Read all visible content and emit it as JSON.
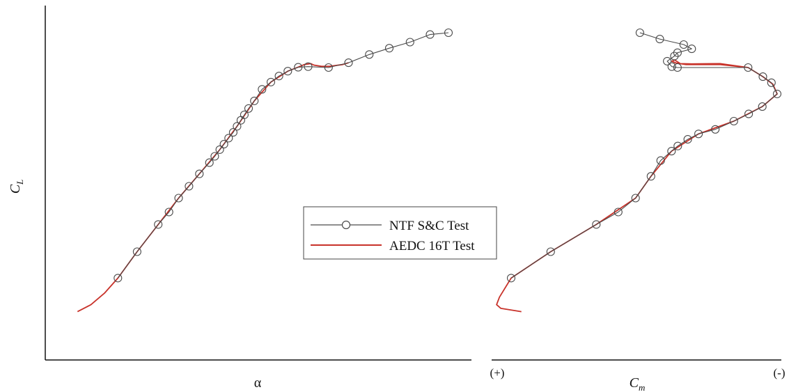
{
  "chart_data": [
    {
      "type": "line",
      "xlabel": "α",
      "ylabel": "C",
      "ylabel_sub": "L",
      "xlim": [
        0,
        100
      ],
      "ylim": [
        0,
        100
      ],
      "grid": false,
      "series": [
        {
          "name": "NTF S&C Test",
          "color": "#4a4a4a",
          "marker": "open-circle",
          "points": [
            [
              14.0,
              19.0
            ],
            [
              19.0,
              27.7
            ],
            [
              24.5,
              36.7
            ],
            [
              27.3,
              40.8
            ],
            [
              29.8,
              45.4
            ],
            [
              32.5,
              49.3
            ],
            [
              35.2,
              53.4
            ],
            [
              37.8,
              57.1
            ],
            [
              39.2,
              59.2
            ],
            [
              40.5,
              61.4
            ],
            [
              41.6,
              63.2
            ],
            [
              42.8,
              65.2
            ],
            [
              44.0,
              67.1
            ],
            [
              45.0,
              69.1
            ],
            [
              46.0,
              71.1
            ],
            [
              46.9,
              72.9
            ],
            [
              48.0,
              75.0
            ],
            [
              49.5,
              77.5
            ],
            [
              51.5,
              81.3
            ],
            [
              53.8,
              83.7
            ],
            [
              55.9,
              85.7
            ],
            [
              58.2,
              87.3
            ],
            [
              60.9,
              88.6
            ],
            [
              63.5,
              88.8
            ],
            [
              68.8,
              88.5
            ],
            [
              74.0,
              90.1
            ],
            [
              79.4,
              92.8
            ],
            [
              84.6,
              94.9
            ],
            [
              90.0,
              96.9
            ],
            [
              95.2,
              99.4
            ],
            [
              100.0,
              100.0
            ]
          ]
        },
        {
          "name": "AEDC 16T Test",
          "color": "#c8322a",
          "marker": "none",
          "points": [
            [
              3.5,
              7.9
            ],
            [
              7.0,
              10.2
            ],
            [
              10.5,
              14.0
            ],
            [
              14.0,
              19.0
            ],
            [
              19.0,
              27.7
            ],
            [
              24.5,
              36.7
            ],
            [
              29.8,
              45.4
            ],
            [
              35.2,
              53.4
            ],
            [
              40.5,
              61.4
            ],
            [
              45.0,
              69.1
            ],
            [
              49.5,
              77.5
            ],
            [
              53.8,
              83.7
            ],
            [
              58.2,
              87.3
            ],
            [
              61.0,
              88.7
            ],
            [
              62.5,
              89.5
            ],
            [
              64.2,
              89.8
            ],
            [
              65.0,
              89.3
            ],
            [
              67.0,
              88.9
            ],
            [
              69.0,
              88.9
            ],
            [
              70.2,
              89.1
            ],
            [
              72.5,
              89.5
            ],
            [
              74.0,
              90.1
            ]
          ]
        }
      ]
    },
    {
      "type": "line",
      "xlabel": "C",
      "xlabel_sub": "m",
      "x_left_label": "(+)",
      "x_right_label": "(-)",
      "xlim": [
        0,
        100
      ],
      "ylim": [
        0,
        100
      ],
      "grid": false,
      "series": [
        {
          "name": "NTF S&C Test",
          "color": "#4a4a4a",
          "marker": "open-circle",
          "points": [
            [
              6.6,
              19.0
            ],
            [
              20.5,
              27.7
            ],
            [
              36.5,
              36.7
            ],
            [
              44.2,
              40.8
            ],
            [
              50.3,
              45.4
            ],
            [
              55.7,
              52.6
            ],
            [
              59.1,
              57.8
            ],
            [
              62.9,
              60.9
            ],
            [
              65.1,
              62.6
            ],
            [
              68.6,
              64.8
            ],
            [
              72.4,
              66.6
            ],
            [
              78.3,
              68.1
            ],
            [
              84.8,
              70.8
            ],
            [
              90.0,
              73.2
            ],
            [
              94.8,
              75.6
            ],
            [
              100.0,
              79.8
            ],
            [
              98.0,
              83.5
            ],
            [
              95.0,
              85.5
            ],
            [
              89.8,
              88.5
            ],
            [
              65.0,
              88.5
            ],
            [
              63.0,
              88.8
            ],
            [
              61.4,
              90.6
            ],
            [
              63.9,
              92.3
            ],
            [
              65.0,
              93.4
            ],
            [
              70.0,
              94.7
            ],
            [
              67.2,
              96.1
            ],
            [
              58.8,
              97.9
            ],
            [
              51.8,
              100.0
            ]
          ]
        },
        {
          "name": "AEDC 16T Test",
          "color": "#c8322a",
          "marker": "none",
          "points": [
            [
              10.2,
              7.9
            ],
            [
              3.0,
              9.0
            ],
            [
              1.5,
              10.2
            ],
            [
              2.5,
              12.7
            ],
            [
              6.6,
              19.0
            ],
            [
              20.5,
              27.7
            ],
            [
              36.5,
              36.7
            ],
            [
              50.3,
              45.4
            ],
            [
              55.7,
              52.6
            ],
            [
              62.9,
              60.9
            ],
            [
              72.4,
              66.6
            ],
            [
              84.8,
              70.8
            ],
            [
              94.8,
              75.6
            ],
            [
              100.0,
              79.8
            ],
            [
              98.5,
              83.0
            ],
            [
              95.0,
              85.5
            ],
            [
              89.8,
              88.5
            ],
            [
              80.0,
              89.5
            ],
            [
              68.0,
              89.5
            ],
            [
              64.5,
              90.0
            ],
            [
              63.0,
              90.6
            ],
            [
              64.0,
              91.0
            ],
            [
              66.0,
              89.8
            ],
            [
              70.0,
              89.7
            ],
            [
              80.0,
              89.8
            ],
            [
              89.8,
              88.5
            ]
          ]
        }
      ]
    }
  ],
  "legend": {
    "placement": "center",
    "entries": [
      "NTF S&C Test",
      "AEDC 16T Test"
    ]
  }
}
